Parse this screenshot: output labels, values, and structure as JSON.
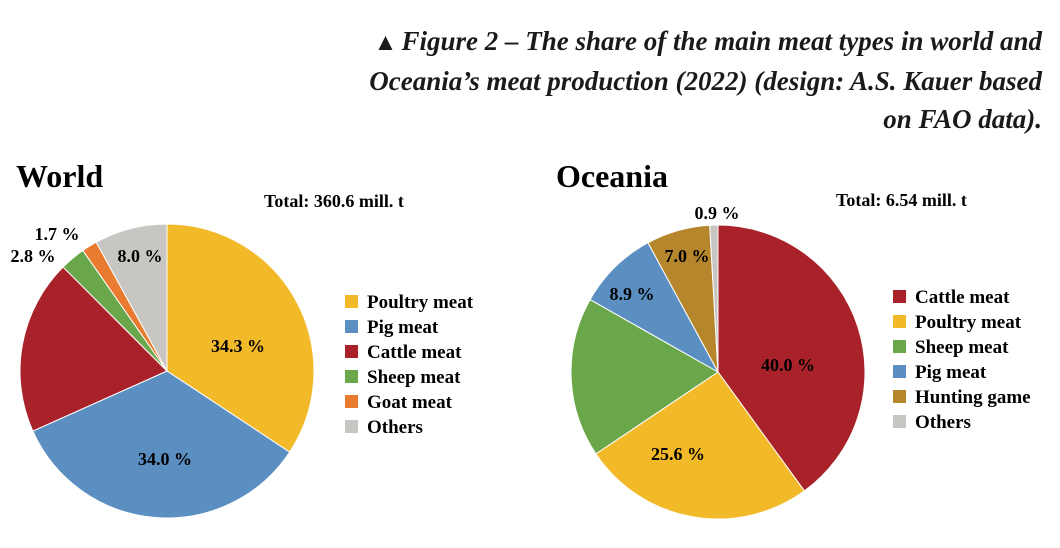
{
  "caption": {
    "marker": "▲",
    "text": "Figure 2 – The share of the main meat types in world and Oceania’s meat production (2022) (design: A.S. Kauer based on FAO data)."
  },
  "chart_data": [
    {
      "type": "pie",
      "title": "World",
      "total_label": "Total: 360.6 mill. t",
      "slices": [
        {
          "label": "Poultry meat",
          "value": 34.3,
          "color": "#f2b928",
          "value_label": "34.3 %"
        },
        {
          "label": "Pig meat",
          "value": 34.0,
          "color": "#5b8fc2",
          "value_label": "34.0 %"
        },
        {
          "label": "Cattle meat",
          "value": 19.2,
          "color": "#aa2229",
          "value_label": ""
        },
        {
          "label": "Sheep meat",
          "value": 2.8,
          "color": "#6aa74a",
          "value_label": "2.8 %"
        },
        {
          "label": "Goat meat",
          "value": 1.7,
          "color": "#e87b30",
          "value_label": "1.7 %"
        },
        {
          "label": "Others",
          "value": 8.0,
          "color": "#c7c6c2",
          "value_label": "8.0 %"
        }
      ],
      "legend": [
        "Poultry meat",
        "Pig meat",
        "Cattle meat",
        "Sheep meat",
        "Goat meat",
        "Others"
      ]
    },
    {
      "type": "pie",
      "title": "Oceania",
      "total_label": "Total: 6.54 mill. t",
      "slices": [
        {
          "label": "Cattle meat",
          "value": 40.0,
          "color": "#aa2229",
          "value_label": "40.0 %"
        },
        {
          "label": "Poultry meat",
          "value": 25.6,
          "color": "#f2b928",
          "value_label": "25.6 %"
        },
        {
          "label": "Sheep meat",
          "value": 17.6,
          "color": "#6aa74a",
          "value_label": ""
        },
        {
          "label": "Pig meat",
          "value": 8.9,
          "color": "#5b8fc2",
          "value_label": "8.9 %"
        },
        {
          "label": "Hunting game",
          "value": 7.0,
          "color": "#b5862c",
          "value_label": "7.0 %"
        },
        {
          "label": "Others",
          "value": 0.9,
          "color": "#c7c6c2",
          "value_label": "0.9 %"
        }
      ],
      "legend": [
        "Cattle meat",
        "Poultry meat",
        "Sheep meat",
        "Pig meat",
        "Hunting game",
        "Others"
      ]
    }
  ]
}
